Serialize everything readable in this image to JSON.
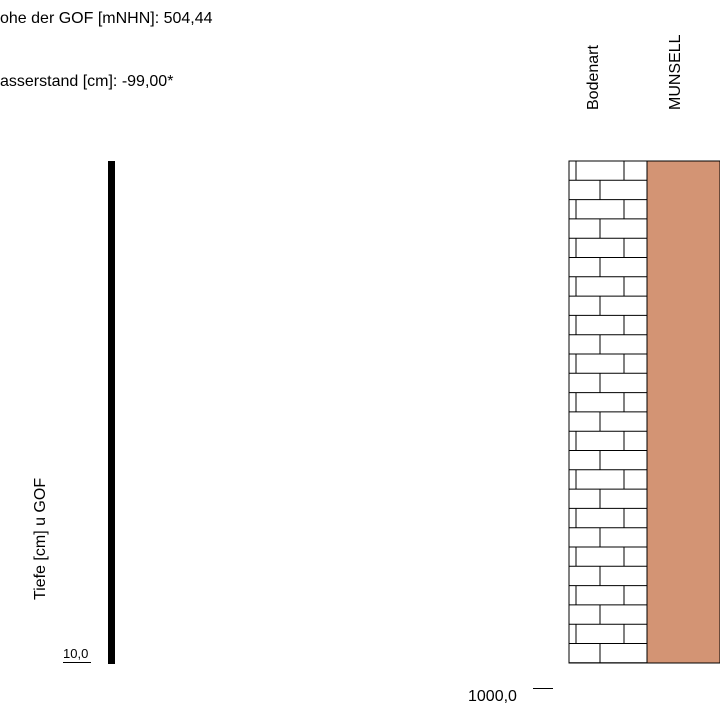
{
  "header": {
    "elevation_line": "ohe der GOF [mNHN]: 504,44",
    "water_line": "asserstand [cm]: -99,00*"
  },
  "axis": {
    "label": "Tiefe [cm] u GOF",
    "top_value": "10,0",
    "bottom_value": "1000,0"
  },
  "columns": {
    "soil_type": "Bodenart",
    "munsell": "MUNSELL"
  },
  "colors": {
    "munsell_fill": "#d39474",
    "pattern_stroke": "#000000",
    "depth_bar": "#000000"
  },
  "pattern": "brick-limestone-hatch"
}
